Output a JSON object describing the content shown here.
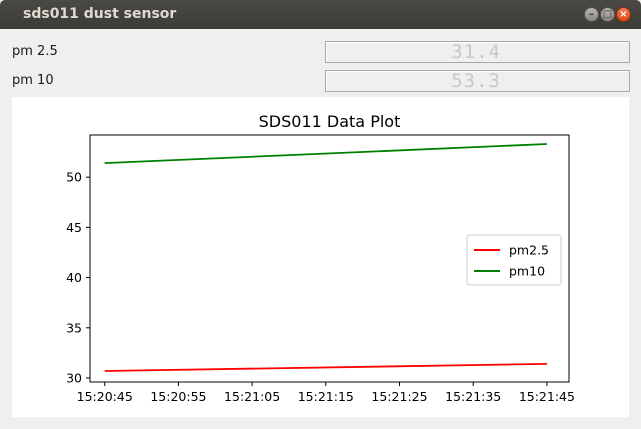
{
  "window": {
    "title": "sds011 dust sensor",
    "buttons": {
      "minimize": "–",
      "maximize": "□",
      "close": "×"
    }
  },
  "readings": [
    {
      "label": "pm 2.5",
      "display": "31.4"
    },
    {
      "label": "pm 10",
      "display": "53.3"
    }
  ],
  "chart_data": {
    "type": "line",
    "title": "SDS011 Data Plot",
    "x_labels": [
      "15:20:45",
      "15:20:55",
      "15:21:05",
      "15:21:15",
      "15:21:25",
      "15:21:35",
      "15:21:45"
    ],
    "x_range": [
      "15:20:43",
      "15:21:48"
    ],
    "yticks": [
      30,
      35,
      40,
      45,
      50
    ],
    "ylim": [
      29.6,
      54.2
    ],
    "legend": "center-right",
    "series": [
      {
        "name": "pm2.5",
        "color": "#ff0000",
        "x": [
          "15:20:45",
          "15:21:45"
        ],
        "y": [
          30.7,
          31.4
        ]
      },
      {
        "name": "pm10",
        "color": "#008000",
        "x": [
          "15:20:45",
          "15:21:45"
        ],
        "y": [
          51.4,
          53.3
        ]
      }
    ]
  }
}
